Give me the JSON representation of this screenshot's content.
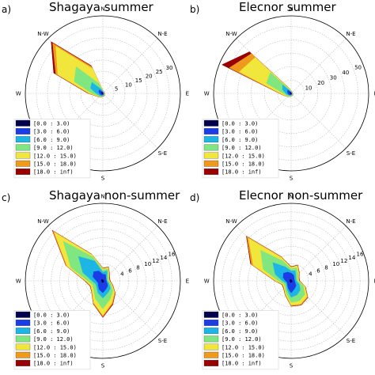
{
  "bins": [
    "[0.0 : 3.0)",
    "[3.0 : 6.0)",
    "[6.0 : 9.0)",
    "[9.0 : 12.0)",
    "[12.0 : 15.0)",
    "[15.0 : 18.0)",
    "[18.0 : inf)"
  ],
  "colors": [
    "#00004c",
    "#1a3de6",
    "#1cb5e6",
    "#80e680",
    "#f0e63c",
    "#f09a1c",
    "#990000"
  ],
  "directions": [
    "N",
    "N-E",
    "E",
    "S-E",
    "S",
    "S-W",
    "W",
    "N-W"
  ],
  "chart_data": [
    {
      "type": "windrose",
      "panel_label": "a)",
      "title": "Shagaya summer",
      "rlim": [
        0,
        35
      ],
      "rticks": [
        5,
        10,
        15,
        20,
        25,
        30
      ],
      "rtick_labels": [
        "5",
        "10",
        "15",
        "20",
        "25",
        "30"
      ],
      "angles_deg": [
        0,
        22.5,
        45,
        67.5,
        90,
        112.5,
        135,
        157.5,
        180,
        202.5,
        225,
        247.5,
        270,
        292.5,
        315,
        337.5
      ],
      "series": [
        {
          "values": [
            0.2,
            0.1,
            0.1,
            0.1,
            0.1,
            0.1,
            0.2,
            0.2,
            0.2,
            0.3,
            0.3,
            0.4,
            0.5,
            0.6,
            0.8,
            0.3
          ]
        },
        {
          "values": [
            0.5,
            0.3,
            0.3,
            0.3,
            0.3,
            0.3,
            0.5,
            0.5,
            0.7,
            0.8,
            1.0,
            1.2,
            1.5,
            2.0,
            2.2,
            0.8
          ]
        },
        {
          "values": [
            0.8,
            0.5,
            0.4,
            0.4,
            0.4,
            0.5,
            0.7,
            0.8,
            1.0,
            1.2,
            1.5,
            2.0,
            3.0,
            6.0,
            7.0,
            2.0
          ]
        },
        {
          "values": [
            1.0,
            0.6,
            0.5,
            0.5,
            0.5,
            0.6,
            0.8,
            1.0,
            1.2,
            1.5,
            2.0,
            2.5,
            5.0,
            14.0,
            17.0,
            5.0
          ]
        },
        {
          "values": [
            1.2,
            0.7,
            0.6,
            0.6,
            0.6,
            0.7,
            0.9,
            1.1,
            1.3,
            1.7,
            2.2,
            3.0,
            6.0,
            22.0,
            30.0,
            12.0
          ]
        },
        {
          "values": [
            1.3,
            0.8,
            0.7,
            0.7,
            0.7,
            0.8,
            1.0,
            1.2,
            1.4,
            1.8,
            2.3,
            3.2,
            6.5,
            23.0,
            32.0,
            13.0
          ]
        },
        {
          "values": [
            1.4,
            0.9,
            0.8,
            0.8,
            0.8,
            0.9,
            1.1,
            1.3,
            1.5,
            1.9,
            2.4,
            3.3,
            6.8,
            24.0,
            33.0,
            13.5
          ]
        }
      ]
    },
    {
      "type": "windrose",
      "panel_label": "b)",
      "title": "Elecnor summer",
      "rlim": [
        0,
        58
      ],
      "rticks": [
        10,
        20,
        30,
        40,
        50
      ],
      "rtick_labels": [
        "10",
        "20",
        "30",
        "40",
        "50"
      ],
      "angles_deg": [
        0,
        22.5,
        45,
        67.5,
        90,
        112.5,
        135,
        157.5,
        180,
        202.5,
        225,
        247.5,
        270,
        292.5,
        315,
        337.5
      ],
      "series": [
        {
          "values": [
            0.3,
            0.2,
            0.2,
            0.2,
            0.2,
            0.2,
            0.3,
            0.3,
            0.4,
            0.4,
            0.5,
            0.6,
            0.8,
            1.0,
            1.0,
            0.4
          ]
        },
        {
          "values": [
            0.8,
            0.5,
            0.4,
            0.4,
            0.4,
            0.5,
            0.7,
            0.8,
            1.0,
            1.2,
            1.5,
            2.0,
            2.5,
            3.0,
            3.5,
            1.0
          ]
        },
        {
          "values": [
            1.2,
            0.8,
            0.6,
            0.6,
            0.6,
            0.8,
            1.0,
            1.2,
            1.5,
            1.8,
            2.2,
            3.0,
            4.0,
            7.0,
            9.0,
            2.0
          ]
        },
        {
          "values": [
            1.5,
            1.0,
            0.8,
            0.8,
            0.8,
            1.0,
            1.3,
            1.5,
            1.8,
            2.2,
            2.8,
            4.0,
            6.0,
            20.0,
            22.0,
            3.0
          ]
        },
        {
          "values": [
            1.8,
            1.2,
            1.0,
            1.0,
            1.0,
            1.2,
            1.5,
            1.8,
            2.1,
            2.6,
            3.3,
            4.8,
            8.0,
            42.0,
            38.0,
            4.0
          ]
        },
        {
          "values": [
            2.0,
            1.3,
            1.1,
            1.1,
            1.1,
            1.3,
            1.6,
            1.9,
            2.2,
            2.7,
            3.4,
            5.0,
            8.5,
            50.0,
            42.0,
            4.3
          ]
        },
        {
          "values": [
            2.1,
            1.4,
            1.2,
            1.2,
            1.2,
            1.4,
            1.7,
            2.0,
            2.3,
            2.8,
            3.5,
            5.1,
            8.8,
            56.0,
            44.0,
            4.5
          ]
        }
      ]
    },
    {
      "type": "windrose",
      "panel_label": "c)",
      "title": "Shagaya non-summer",
      "rlim": [
        0,
        18
      ],
      "rticks": [
        4,
        6,
        8,
        10,
        12,
        14,
        16
      ],
      "rtick_labels": [
        "4",
        "6",
        "8",
        "10",
        "12",
        "14",
        "16"
      ],
      "angles_deg": [
        0,
        22.5,
        45,
        67.5,
        90,
        112.5,
        135,
        157.5,
        180,
        202.5,
        225,
        247.5,
        270,
        292.5,
        315,
        337.5
      ],
      "series": [
        {
          "values": [
            0.3,
            0.2,
            0.2,
            0.2,
            0.2,
            0.3,
            0.3,
            0.3,
            0.4,
            0.4,
            0.3,
            0.3,
            0.3,
            0.4,
            0.4,
            0.3
          ]
        },
        {
          "values": [
            1.5,
            1.6,
            1.0,
            0.8,
            0.8,
            1.0,
            1.6,
            2.0,
            2.8,
            2.2,
            1.5,
            1.2,
            1.5,
            2.5,
            3.0,
            2.5
          ]
        },
        {
          "values": [
            2.0,
            2.5,
            1.3,
            1.0,
            1.0,
            1.5,
            2.5,
            3.0,
            4.0,
            3.0,
            2.0,
            1.8,
            2.5,
            5.0,
            8.0,
            5.0
          ]
        },
        {
          "values": [
            2.5,
            3.0,
            1.8,
            1.3,
            1.3,
            2.0,
            3.3,
            4.5,
            6.5,
            4.5,
            3.0,
            2.5,
            3.5,
            8.0,
            13.0,
            6.0
          ]
        },
        {
          "values": [
            2.8,
            3.3,
            2.0,
            1.5,
            1.5,
            2.3,
            3.8,
            5.5,
            8.0,
            5.5,
            3.5,
            3.0,
            4.0,
            9.0,
            16.0,
            6.5
          ]
        },
        {
          "values": [
            2.9,
            3.4,
            2.1,
            1.6,
            1.6,
            2.4,
            4.0,
            5.8,
            8.3,
            5.7,
            3.6,
            3.1,
            4.1,
            9.2,
            16.4,
            6.6
          ]
        },
        {
          "values": [
            3.0,
            3.5,
            2.2,
            1.7,
            1.7,
            2.5,
            4.1,
            6.0,
            8.5,
            5.8,
            3.7,
            3.2,
            4.2,
            9.3,
            16.6,
            6.7
          ]
        }
      ]
    },
    {
      "type": "windrose",
      "panel_label": "d)",
      "title": "Elecnor non-summer",
      "rlim": [
        0,
        18
      ],
      "rticks": [
        4,
        6,
        8,
        10,
        12,
        14,
        16
      ],
      "rtick_labels": [
        "4",
        "6",
        "8",
        "10",
        "12",
        "14",
        "16"
      ],
      "angles_deg": [
        0,
        22.5,
        45,
        67.5,
        90,
        112.5,
        135,
        157.5,
        180,
        202.5,
        225,
        247.5,
        270,
        292.5,
        315,
        337.5
      ],
      "series": [
        {
          "values": [
            0.3,
            0.2,
            0.2,
            0.2,
            0.2,
            0.3,
            0.3,
            0.3,
            0.4,
            0.4,
            0.3,
            0.3,
            0.3,
            0.4,
            0.4,
            0.3
          ]
        },
        {
          "values": [
            1.8,
            1.5,
            1.0,
            0.8,
            0.8,
            1.0,
            1.6,
            2.0,
            2.8,
            1.8,
            1.2,
            1.0,
            1.3,
            2.0,
            2.5,
            2.2
          ]
        },
        {
          "values": [
            2.3,
            2.5,
            1.5,
            1.2,
            1.2,
            2.0,
            3.0,
            3.5,
            3.8,
            2.3,
            1.5,
            1.3,
            2.0,
            4.0,
            6.0,
            3.5
          ]
        },
        {
          "values": [
            2.8,
            3.3,
            2.2,
            1.6,
            1.6,
            3.0,
            4.5,
            5.0,
            5.0,
            3.0,
            2.0,
            1.8,
            3.0,
            7.0,
            10.0,
            5.0
          ]
        },
        {
          "values": [
            3.1,
            3.8,
            2.5,
            1.8,
            1.8,
            3.4,
            5.2,
            5.8,
            5.6,
            3.4,
            2.3,
            2.1,
            3.6,
            9.5,
            14.0,
            5.8
          ]
        },
        {
          "values": [
            3.2,
            3.9,
            2.6,
            1.9,
            1.9,
            3.5,
            5.4,
            6.0,
            5.8,
            3.5,
            2.4,
            2.2,
            3.7,
            10.0,
            14.5,
            6.0
          ]
        },
        {
          "values": [
            3.3,
            4.0,
            2.7,
            2.0,
            2.0,
            3.6,
            5.5,
            6.1,
            5.9,
            3.6,
            2.5,
            2.3,
            3.8,
            10.2,
            14.7,
            6.1
          ]
        }
      ]
    }
  ]
}
